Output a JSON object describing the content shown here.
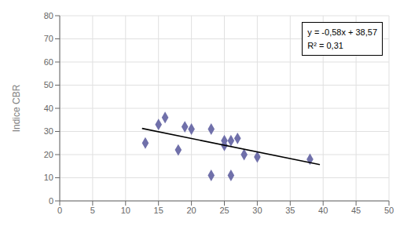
{
  "chart_data": {
    "type": "scatter",
    "ylabel": "Indice CBR",
    "series": [
      {
        "type": "scatter",
        "x": [
          13,
          15,
          16,
          18,
          19,
          20,
          23,
          23,
          25,
          25,
          26,
          26,
          27,
          28,
          30,
          38
        ],
        "values": [
          25,
          33,
          36,
          22,
          32,
          31,
          31,
          11,
          24,
          26,
          26,
          11,
          27,
          20,
          19,
          18
        ],
        "color": "#7070aa",
        "marker": "diamond"
      },
      {
        "type": "line",
        "x": [
          12.5,
          39.5
        ],
        "values": [
          31.32,
          15.66
        ],
        "color": "#000000"
      }
    ],
    "annotations": [
      "y = -0,58x + 38,57",
      "R² = 0,31"
    ],
    "xlim": [
      0,
      50
    ],
    "ylim": [
      0,
      80
    ],
    "xticks": [
      0,
      5,
      10,
      15,
      20,
      25,
      30,
      35,
      40,
      45,
      50
    ],
    "yticks": [
      0,
      10,
      20,
      30,
      40,
      50,
      60,
      70,
      80
    ],
    "grid": true
  }
}
